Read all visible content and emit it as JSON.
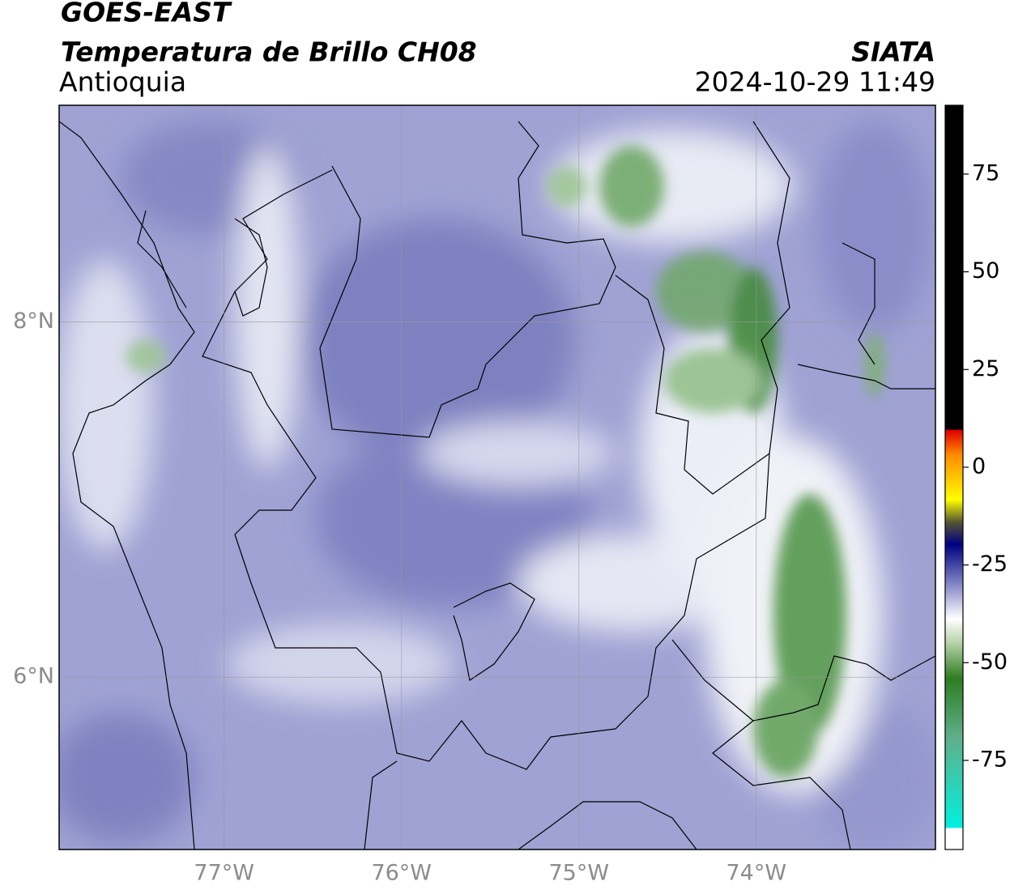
{
  "header": {
    "satellite": "GOES-EAST",
    "product": "Temperatura de Brillo CH08",
    "region": "Antioquia",
    "source": "SIATA",
    "timestamp": "2024-10-29 11:49"
  },
  "map": {
    "lon_range": [
      -77.93,
      -72.99
    ],
    "lat_range": [
      5.03,
      9.22
    ],
    "lon_ticks": [
      {
        "value": -77,
        "label": "77°W"
      },
      {
        "value": -76,
        "label": "76°W"
      },
      {
        "value": -75,
        "label": "75°W"
      },
      {
        "value": -74,
        "label": "74°W"
      }
    ],
    "lat_ticks": [
      {
        "value": 8,
        "label": "8°N"
      },
      {
        "value": 6,
        "label": "6°N"
      }
    ]
  },
  "colorbar": {
    "range": [
      -97.8,
      92.6
    ],
    "ticks": [
      75,
      50,
      25,
      0,
      -25,
      -50,
      -75
    ]
  }
}
